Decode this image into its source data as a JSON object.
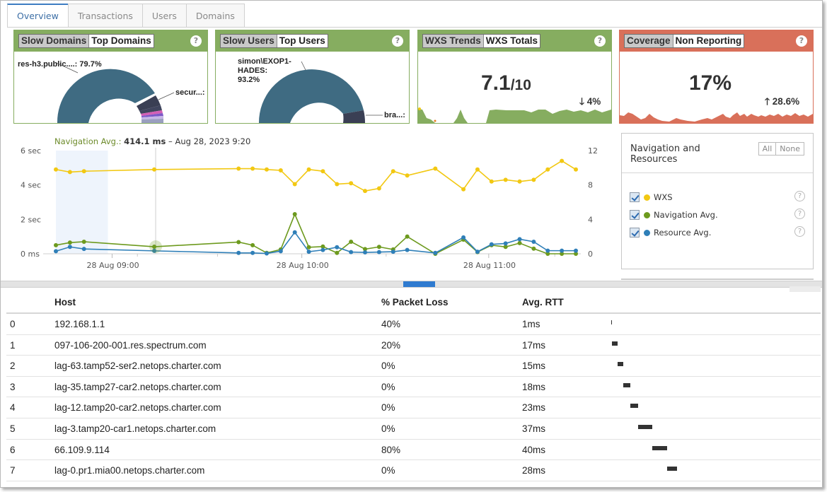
{
  "tabs": [
    "Overview",
    "Transactions",
    "Users",
    "Domains"
  ],
  "cards": {
    "domains": {
      "tab1": "Slow Domains",
      "tab2": "Top Domains",
      "label_main": "res-h3.public....: 79.7%",
      "label_side": "secur...:",
      "main_share": 79.7
    },
    "users": {
      "tab1": "Slow Users",
      "tab2": "Top Users",
      "label_main_1": "simon\\EXOP1-",
      "label_main_2": "HADES:",
      "label_main_3": "93.2%",
      "label_side": "bra...:",
      "main_share": 93.2
    },
    "wxs": {
      "tab1": "WXS Trends",
      "tab2": "WXS Totals",
      "value": "7.1",
      "suffix": "/10",
      "delta": "4%",
      "delta_dir": "down"
    },
    "coverage": {
      "tab1": "Coverage",
      "tab2": "Non Reporting",
      "value": "17%",
      "delta": "28.6%",
      "delta_dir": "up"
    }
  },
  "help_symbol": "?",
  "chart": {
    "annotation_label": "Navigation Avg.:",
    "annotation_value": "414.1 ms",
    "annotation_time": "– Aug 28, 2023 9:20"
  },
  "chart_data": {
    "type": "line",
    "x_ticks": [
      "28 Aug 09:00",
      "28 Aug 10:00",
      "28 Aug 11:00"
    ],
    "y_left_ticks": [
      "6 sec",
      "4 sec",
      "2 sec",
      "0 ms"
    ],
    "y_right_ticks": [
      "12",
      "8",
      "4",
      "0"
    ],
    "ylim_left_sec": [
      0,
      6
    ],
    "ylim_right": [
      0,
      12
    ],
    "x": [
      0,
      1,
      2,
      7,
      13,
      14,
      15,
      16,
      17,
      18,
      19,
      20,
      21,
      22,
      23,
      24,
      25,
      27,
      29,
      30,
      31,
      32,
      33,
      34,
      35,
      36,
      37
    ],
    "series": [
      {
        "name": "WXS",
        "color": "#f2c812",
        "axis": "right",
        "values": [
          9.8,
          9.5,
          9.6,
          9.8,
          9.9,
          9.9,
          9.8,
          9.7,
          8.1,
          9.8,
          9.6,
          8.1,
          8.2,
          7.3,
          7.6,
          9.6,
          9.1,
          9.9,
          7.5,
          9.8,
          8.4,
          8.6,
          8.4,
          8.6,
          9.8,
          10.8,
          9.8
        ],
        "extra_right_end": 9.8
      },
      {
        "name": "Navigation Avg.",
        "color": "#6d9a1e",
        "axis": "left",
        "values": [
          0.5,
          0.65,
          0.7,
          0.41,
          0.68,
          0.5,
          0.05,
          0.25,
          2.3,
          0.38,
          0.42,
          0.05,
          0.7,
          0.27,
          0.4,
          0.25,
          1.0,
          0.0,
          0.82,
          0.1,
          0.5,
          0.4,
          0.62,
          0.3,
          0.0,
          0.0,
          0.0
        ]
      },
      {
        "name": "Resource Avg.",
        "color": "#2f7fb8",
        "axis": "left",
        "values": [
          0.15,
          0.4,
          0.28,
          0.17,
          0.05,
          0.05,
          0.02,
          0.15,
          1.25,
          0.12,
          0.22,
          0.38,
          0.1,
          0.08,
          0.1,
          0.12,
          0.22,
          0.05,
          0.95,
          0.12,
          0.55,
          0.6,
          0.85,
          0.7,
          0.18,
          0.18,
          0.18
        ]
      }
    ]
  },
  "legend": {
    "title": "Navigation and Resources",
    "all_btn": "All",
    "none_btn": "None",
    "items": [
      {
        "label": "WXS",
        "color": "#f2c812"
      },
      {
        "label": "Navigation Avg.",
        "color": "#6d9a1e"
      },
      {
        "label": "Resource Avg.",
        "color": "#2f7fb8"
      }
    ]
  },
  "table": {
    "headers": {
      "host": "Host",
      "loss": "% Packet Loss",
      "rtt": "Avg. RTT"
    },
    "rows": [
      {
        "idx": "0",
        "host": "192.168.1.1",
        "loss": "40%",
        "rtt": "1ms",
        "rtt_ms": 1
      },
      {
        "idx": "1",
        "host": "097-106-200-001.res.spectrum.com",
        "loss": "20%",
        "rtt": "17ms",
        "rtt_ms": 17
      },
      {
        "idx": "2",
        "host": "lag-63.tamp52-ser2.netops.charter.com",
        "loss": "0%",
        "rtt": "15ms",
        "rtt_ms": 15
      },
      {
        "idx": "3",
        "host": "lag-35.tamp27-car2.netops.charter.com",
        "loss": "0%",
        "rtt": "18ms",
        "rtt_ms": 18
      },
      {
        "idx": "4",
        "host": "lag-12.tamp20-car2.netops.charter.com",
        "loss": "0%",
        "rtt": "23ms",
        "rtt_ms": 23
      },
      {
        "idx": "5",
        "host": "lag-3.tamp20-car1.netops.charter.com",
        "loss": "0%",
        "rtt": "37ms",
        "rtt_ms": 37
      },
      {
        "idx": "6",
        "host": "66.109.9.114",
        "loss": "80%",
        "rtt": "40ms",
        "rtt_ms": 40
      },
      {
        "idx": "7",
        "host": "lag-0.pr1.mia00.netops.charter.com",
        "loss": "0%",
        "rtt": "28ms",
        "rtt_ms": 28
      }
    ]
  }
}
